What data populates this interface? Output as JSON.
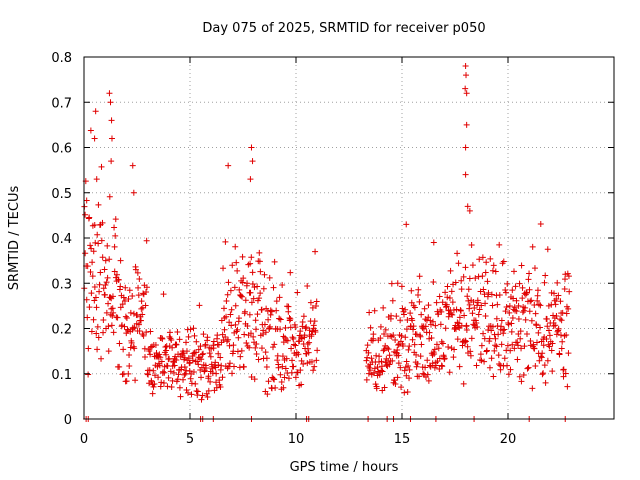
{
  "chart_data": {
    "type": "scatter",
    "title": "Day 075 of 2025, SRMTID for receiver p050",
    "xlabel": "GPS time / hours",
    "ylabel": "SRMTID / TECUs",
    "xlim": [
      0,
      25
    ],
    "ylim": [
      0,
      0.8
    ],
    "xticks": [
      0,
      5,
      10,
      15,
      20
    ],
    "xtick_labels": [
      "0",
      "5",
      "10",
      "15",
      "20"
    ],
    "yticks": [
      0,
      0.1,
      0.2,
      0.3,
      0.4,
      0.5,
      0.6,
      0.7,
      0.8
    ],
    "ytick_labels": [
      "0",
      "0.1",
      "0.2",
      "0.3",
      "0.4",
      "0.5",
      "0.6",
      "0.7",
      "0.8"
    ],
    "grid": true,
    "marker": "plus",
    "marker_color": "#e00000",
    "segments": [
      {
        "x_start": 0.0,
        "x_end": 1.0,
        "y_base": 0.3
      },
      {
        "x_start": 1.0,
        "x_end": 1.5,
        "y_base": 0.33
      },
      {
        "x_start": 1.5,
        "x_end": 3.0,
        "y_base": 0.22
      },
      {
        "x_start": 3.0,
        "x_end": 6.5,
        "y_base": 0.12
      },
      {
        "x_start": 6.5,
        "x_end": 8.5,
        "y_base": 0.22
      },
      {
        "x_start": 8.5,
        "x_end": 11.0,
        "y_base": 0.16
      },
      {
        "x_start": 13.3,
        "x_end": 14.5,
        "y_base": 0.14
      },
      {
        "x_start": 14.5,
        "x_end": 17.0,
        "y_base": 0.17
      },
      {
        "x_start": 17.0,
        "x_end": 20.0,
        "y_base": 0.22
      },
      {
        "x_start": 20.0,
        "x_end": 22.9,
        "y_base": 0.2
      }
    ],
    "outliers": [
      {
        "x": 0.5,
        "y": 0.62
      },
      {
        "x": 0.55,
        "y": 0.68
      },
      {
        "x": 0.6,
        "y": 0.53
      },
      {
        "x": 1.2,
        "y": 0.72
      },
      {
        "x": 1.25,
        "y": 0.7
      },
      {
        "x": 1.3,
        "y": 0.66
      },
      {
        "x": 1.32,
        "y": 0.62
      },
      {
        "x": 1.28,
        "y": 0.57
      },
      {
        "x": 2.3,
        "y": 0.56
      },
      {
        "x": 2.35,
        "y": 0.5
      },
      {
        "x": 6.8,
        "y": 0.56
      },
      {
        "x": 7.9,
        "y": 0.6
      },
      {
        "x": 7.95,
        "y": 0.57
      },
      {
        "x": 7.85,
        "y": 0.53
      },
      {
        "x": 18.0,
        "y": 0.78
      },
      {
        "x": 18.02,
        "y": 0.76
      },
      {
        "x": 17.98,
        "y": 0.73
      },
      {
        "x": 18.05,
        "y": 0.72
      },
      {
        "x": 18.05,
        "y": 0.65
      },
      {
        "x": 18.0,
        "y": 0.6
      },
      {
        "x": 18.0,
        "y": 0.54
      },
      {
        "x": 18.1,
        "y": 0.47
      },
      {
        "x": 18.2,
        "y": 0.46
      },
      {
        "x": 15.2,
        "y": 0.43
      },
      {
        "x": 16.5,
        "y": 0.39
      },
      {
        "x": 10.9,
        "y": 0.37
      },
      {
        "x": 14.8,
        "y": 0.3
      }
    ],
    "zero_points_x": [
      0.1,
      0.2,
      5.5,
      5.6,
      6.1,
      7.9,
      10.5,
      10.6,
      13.4,
      14.3,
      14.6,
      15.4,
      16.6,
      18.4,
      21.0,
      22.7
    ],
    "series": [
      {
        "name": "SRMTID",
        "x_range": [
          0.0,
          22.9
        ],
        "y_range": [
          0.0,
          0.78
        ]
      }
    ]
  }
}
